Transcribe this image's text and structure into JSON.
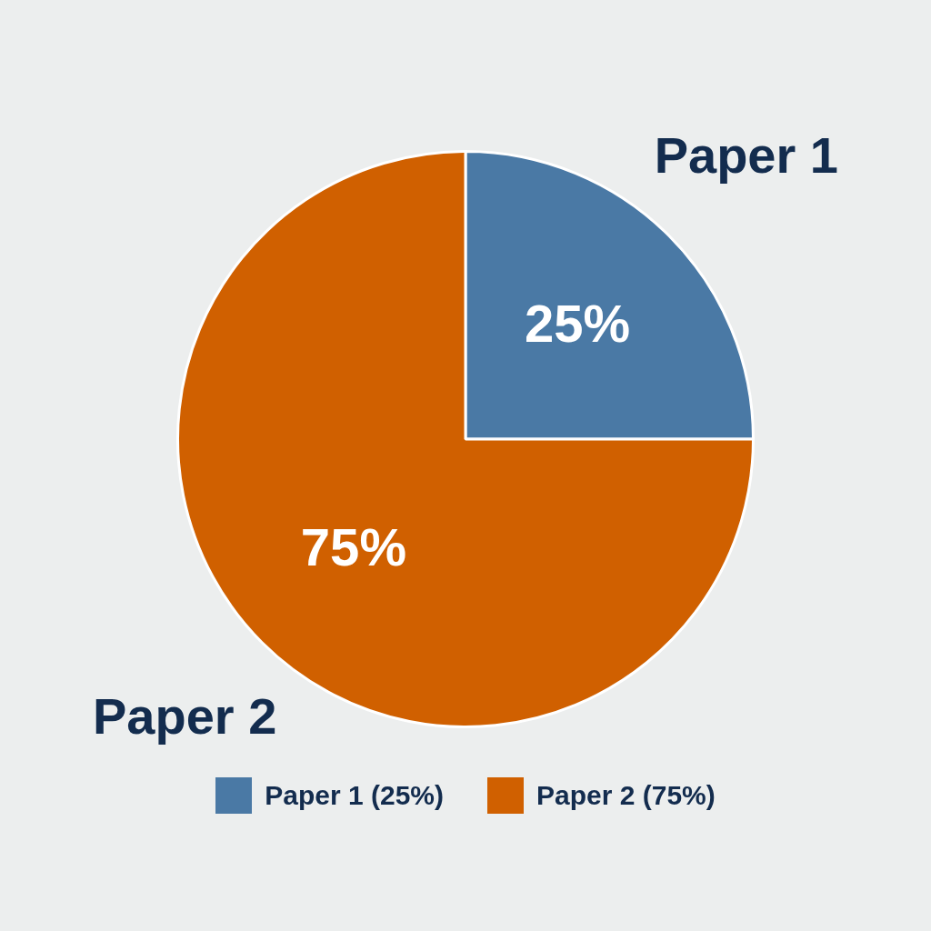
{
  "chart_data": {
    "type": "pie",
    "categories": [
      "Paper 1",
      "Paper 2"
    ],
    "values": [
      25,
      75
    ],
    "value_labels": [
      "25%",
      "75%"
    ],
    "colors": [
      "#4a79a5",
      "#d06000"
    ],
    "annotations": [
      "Paper 1 (25%)",
      "Paper 2 (75%)"
    ]
  }
}
